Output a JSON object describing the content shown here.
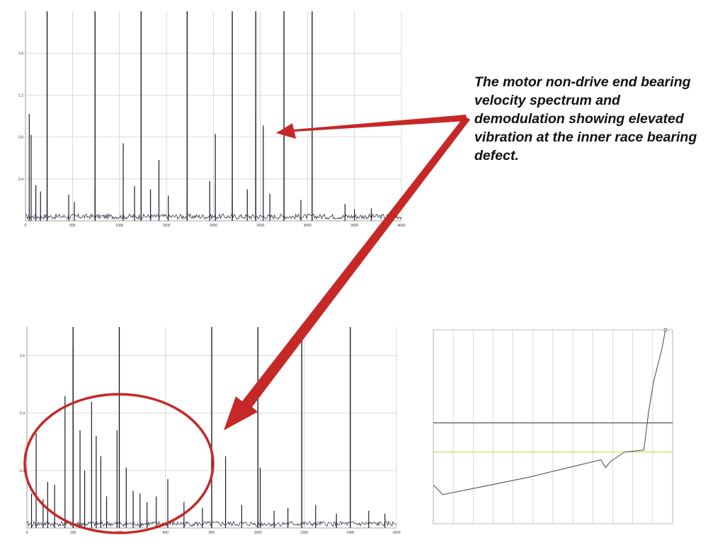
{
  "annotation": {
    "text": "The motor non-drive end bearing velocity spectrum and demodulation showing elevated vibration at the inner race bearing defect."
  },
  "colors": {
    "arrow": "#c62828",
    "highlight_ellipse": "#c62828",
    "spectrum_trace": "#1a1a2e",
    "marker_line": "#111111",
    "grid": "#d0d0d0",
    "alarm_line": "#555555",
    "alert_line": "#c8d23c"
  },
  "chart_data": [
    {
      "id": "velocity-spectrum",
      "type": "line",
      "x_ticks": [
        0,
        500,
        1000,
        1500,
        2000,
        2500,
        3000,
        3500,
        4000
      ],
      "y_ticks": [
        0.4,
        0.8,
        1.2,
        1.6
      ],
      "xlim": [
        0,
        4000
      ],
      "ylim": [
        0,
        2.0
      ],
      "grid": true,
      "markers": [
        230,
        740,
        1230,
        1720,
        2200,
        2450,
        2750,
        3050
      ],
      "peaks": [
        {
          "x": 40,
          "y": 1.02
        },
        {
          "x": 60,
          "y": 0.82
        },
        {
          "x": 110,
          "y": 0.34
        },
        {
          "x": 160,
          "y": 0.28
        },
        {
          "x": 230,
          "y": 0.22
        },
        {
          "x": 460,
          "y": 0.25
        },
        {
          "x": 520,
          "y": 0.18
        },
        {
          "x": 740,
          "y": 0.32
        },
        {
          "x": 1040,
          "y": 0.74
        },
        {
          "x": 1160,
          "y": 0.33
        },
        {
          "x": 1330,
          "y": 0.3
        },
        {
          "x": 1420,
          "y": 0.58
        },
        {
          "x": 1520,
          "y": 0.24
        },
        {
          "x": 1720,
          "y": 0.22
        },
        {
          "x": 1960,
          "y": 0.38
        },
        {
          "x": 2020,
          "y": 0.83
        },
        {
          "x": 2200,
          "y": 0.21
        },
        {
          "x": 2360,
          "y": 0.3
        },
        {
          "x": 2450,
          "y": 1.02
        },
        {
          "x": 2530,
          "y": 0.91
        },
        {
          "x": 2600,
          "y": 0.26
        },
        {
          "x": 2750,
          "y": 0.88
        },
        {
          "x": 2930,
          "y": 0.2
        },
        {
          "x": 3050,
          "y": 0.32
        },
        {
          "x": 3400,
          "y": 0.16
        },
        {
          "x": 3500,
          "y": 0.11
        },
        {
          "x": 3680,
          "y": 0.12
        },
        {
          "x": 3900,
          "y": 0.07
        }
      ]
    },
    {
      "id": "demodulation-spectrum",
      "type": "line",
      "x_ticks": [
        0,
        200,
        400,
        600,
        800,
        1000,
        1200,
        1400,
        1600
      ],
      "y_ticks": [
        0.2,
        0.4,
        0.6
      ],
      "xlim": [
        0,
        1600
      ],
      "ylim": [
        0,
        0.7
      ],
      "grid": true,
      "markers": [
        200,
        400,
        800,
        1000,
        1190,
        1400
      ],
      "peaks": [
        {
          "x": 20,
          "y": 0.12
        },
        {
          "x": 40,
          "y": 0.33
        },
        {
          "x": 70,
          "y": 0.1
        },
        {
          "x": 90,
          "y": 0.16
        },
        {
          "x": 120,
          "y": 0.15
        },
        {
          "x": 165,
          "y": 0.46
        },
        {
          "x": 200,
          "y": 0.63
        },
        {
          "x": 230,
          "y": 0.34
        },
        {
          "x": 250,
          "y": 0.2
        },
        {
          "x": 280,
          "y": 0.44
        },
        {
          "x": 300,
          "y": 0.32
        },
        {
          "x": 320,
          "y": 0.25
        },
        {
          "x": 345,
          "y": 0.11
        },
        {
          "x": 390,
          "y": 0.34
        },
        {
          "x": 430,
          "y": 0.21
        },
        {
          "x": 460,
          "y": 0.13
        },
        {
          "x": 490,
          "y": 0.12
        },
        {
          "x": 520,
          "y": 0.09
        },
        {
          "x": 560,
          "y": 0.11
        },
        {
          "x": 610,
          "y": 0.17
        },
        {
          "x": 680,
          "y": 0.09
        },
        {
          "x": 760,
          "y": 0.07
        },
        {
          "x": 860,
          "y": 0.25
        },
        {
          "x": 930,
          "y": 0.08
        },
        {
          "x": 1010,
          "y": 0.21
        },
        {
          "x": 1070,
          "y": 0.06
        },
        {
          "x": 1130,
          "y": 0.07
        },
        {
          "x": 1250,
          "y": 0.08
        },
        {
          "x": 1340,
          "y": 0.05
        },
        {
          "x": 1480,
          "y": 0.06
        },
        {
          "x": 1550,
          "y": 0.05
        }
      ]
    },
    {
      "id": "trend",
      "type": "line",
      "ylim": [
        0,
        1
      ],
      "grid": true,
      "x": [
        0,
        0.04,
        0.2,
        0.4,
        0.6,
        0.7,
        0.72,
        0.74,
        0.8,
        0.88,
        0.9,
        0.92,
        0.955,
        0.97
      ],
      "y": [
        0.2,
        0.15,
        0.19,
        0.24,
        0.3,
        0.33,
        0.29,
        0.32,
        0.37,
        0.38,
        0.58,
        0.73,
        0.9,
        1.0
      ],
      "alarm_level": 0.52,
      "alert_level": 0.37
    }
  ]
}
